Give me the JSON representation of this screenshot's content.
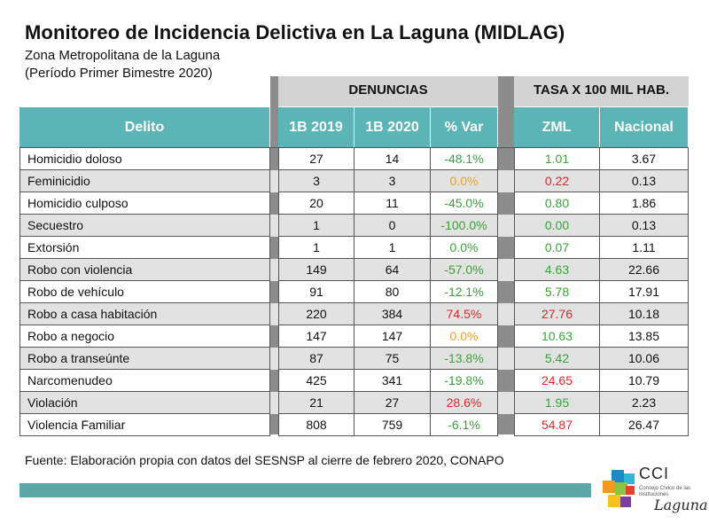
{
  "header": {
    "title": "Monitoreo de Incidencia Delictiva en La Laguna (MIDLAG)",
    "subtitle_line1": "Zona Metropolitana de la Laguna",
    "subtitle_line2": "(Período Primer Bimestre 2020)"
  },
  "groups": {
    "denuncias": "DENUNCIAS",
    "tasa": "TASA X 100 MIL HAB."
  },
  "columns": {
    "delito": "Delito",
    "b2019": "1B 2019",
    "b2020": "1B 2020",
    "var": "% Var",
    "zml": "ZML",
    "nacional": "Nacional"
  },
  "colors": {
    "header_teal": "#5bb4b5",
    "bar_teal": "#5aa8a8",
    "green": "#39a33a",
    "red": "#e0282c",
    "orange": "#f0a020"
  },
  "rows": [
    {
      "delito": "Homicidio doloso",
      "b2019": "27",
      "b2020": "14",
      "var": "-48.1%",
      "var_color": "green",
      "zml": "1.01",
      "zml_color": "green",
      "nacional": "3.67"
    },
    {
      "delito": "Feminicidio",
      "b2019": "3",
      "b2020": "3",
      "var": "0.0%",
      "var_color": "orange",
      "zml": "0.22",
      "zml_color": "red",
      "nacional": "0.13"
    },
    {
      "delito": "Homicidio culposo",
      "b2019": "20",
      "b2020": "11",
      "var": "-45.0%",
      "var_color": "green",
      "zml": "0.80",
      "zml_color": "green",
      "nacional": "1.86"
    },
    {
      "delito": "Secuestro",
      "b2019": "1",
      "b2020": "0",
      "var": "-100.0%",
      "var_color": "green",
      "zml": "0.00",
      "zml_color": "green",
      "nacional": "0.13"
    },
    {
      "delito": "Extorsión",
      "b2019": "1",
      "b2020": "1",
      "var": "0.0%",
      "var_color": "green",
      "zml": "0.07",
      "zml_color": "green",
      "nacional": "1.11"
    },
    {
      "delito": "Robo con violencia",
      "b2019": "149",
      "b2020": "64",
      "var": "-57.0%",
      "var_color": "green",
      "zml": "4.63",
      "zml_color": "green",
      "nacional": "22.66"
    },
    {
      "delito": "Robo de vehículo",
      "b2019": "91",
      "b2020": "80",
      "var": "-12.1%",
      "var_color": "green",
      "zml": "5.78",
      "zml_color": "green",
      "nacional": "17.91"
    },
    {
      "delito": "Robo a casa habitación",
      "b2019": "220",
      "b2020": "384",
      "var": "74.5%",
      "var_color": "red",
      "zml": "27.76",
      "zml_color": "red",
      "nacional": "10.18"
    },
    {
      "delito": "Robo a negocio",
      "b2019": "147",
      "b2020": "147",
      "var": "0.0%",
      "var_color": "orange",
      "zml": "10.63",
      "zml_color": "green",
      "nacional": "13.85"
    },
    {
      "delito": "Robo a transeúnte",
      "b2019": "87",
      "b2020": "75",
      "var": "-13.8%",
      "var_color": "green",
      "zml": "5.42",
      "zml_color": "green",
      "nacional": "10.06"
    },
    {
      "delito": "Narcomenudeo",
      "b2019": "425",
      "b2020": "341",
      "var": "-19.8%",
      "var_color": "green",
      "zml": "24.65",
      "zml_color": "red",
      "nacional": "10.79"
    },
    {
      "delito": "Violación",
      "b2019": "21",
      "b2020": "27",
      "var": "28.6%",
      "var_color": "red",
      "zml": "1.95",
      "zml_color": "green",
      "nacional": "2.23"
    },
    {
      "delito": "Violencia Familiar",
      "b2019": "808",
      "b2020": "759",
      "var": "-6.1%",
      "var_color": "green",
      "zml": "54.87",
      "zml_color": "red",
      "nacional": "26.47"
    }
  ],
  "footer": {
    "source": "Fuente: Elaboración propia con datos del SESNSP al cierre de febrero 2020, CONAPO"
  },
  "logo": {
    "name": "CCI",
    "line": "Consejo Cívico de las Instituciones",
    "script": "Laguna"
  }
}
